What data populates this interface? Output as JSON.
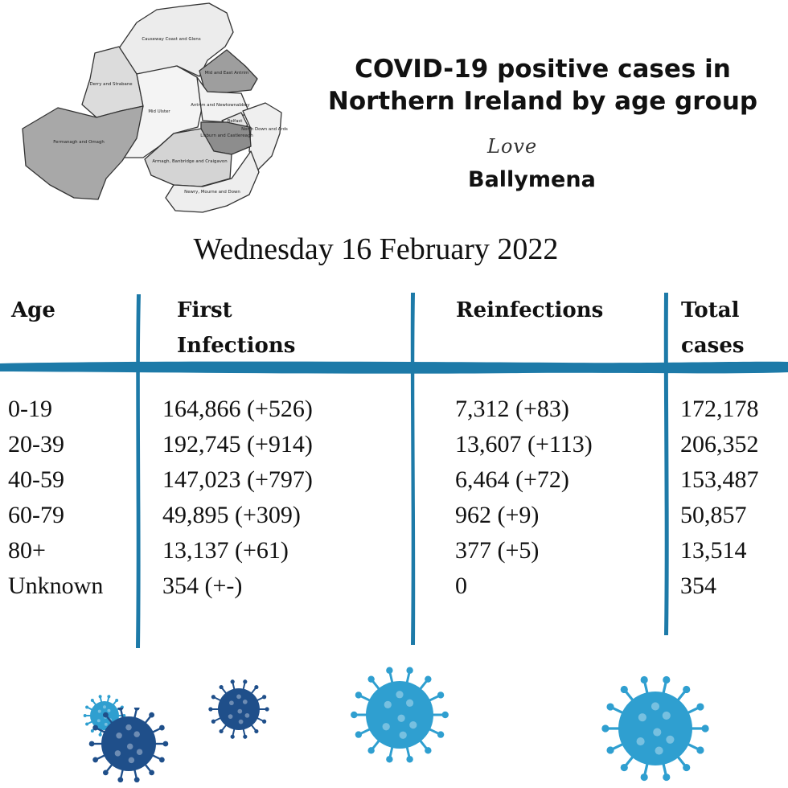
{
  "map": {
    "regions": [
      "Causeway Coast and Glens",
      "Mid and East Antrim",
      "Derry and Strabane",
      "Mid Ulster",
      "Antrim and Newtownabbey",
      "Belfast",
      "North Down and Ards",
      "Fermanagh and Omagh",
      "Lisburn and Castlereagh",
      "Armagh, Banbridge and Craigavon",
      "Newry, Mourne and Down"
    ]
  },
  "title": {
    "line1": "COVID-19 positive cases in",
    "line2": "Northern Ireland by age group"
  },
  "brand": {
    "script": "Love",
    "name": "Ballymena"
  },
  "date": "Wednesday 16 February 2022",
  "table": {
    "headers": {
      "age": "Age",
      "first_line1": "First",
      "first_line2": "Infections",
      "reinfections": "Reinfections",
      "total_line1": "Total",
      "total_line2": "cases"
    },
    "rows": [
      {
        "age": "0-19",
        "first": "164,866 (+526)",
        "reinf": "7,312 (+83)",
        "total": "172,178"
      },
      {
        "age": "20-39",
        "first": "192,745 (+914)",
        "reinf": "13,607 (+113)",
        "total": "206,352"
      },
      {
        "age": "40-59",
        "first": "147,023 (+797)",
        "reinf": "6,464 (+72)",
        "total": "153,487"
      },
      {
        "age": "60-79",
        "first": "49,895 (+309)",
        "reinf": "962 (+9)",
        "total": "50,857"
      },
      {
        "age": "80+",
        "first": "13,137 (+61)",
        "reinf": "377 (+5)",
        "total": "13,514"
      },
      {
        "age": "Unknown",
        "first": "354 (+-)",
        "reinf": "0",
        "total": "354"
      }
    ]
  },
  "colors": {
    "rule": "#1d7aa8",
    "virus_light": "#2f9fd0",
    "virus_dark": "#1f4f8a"
  }
}
